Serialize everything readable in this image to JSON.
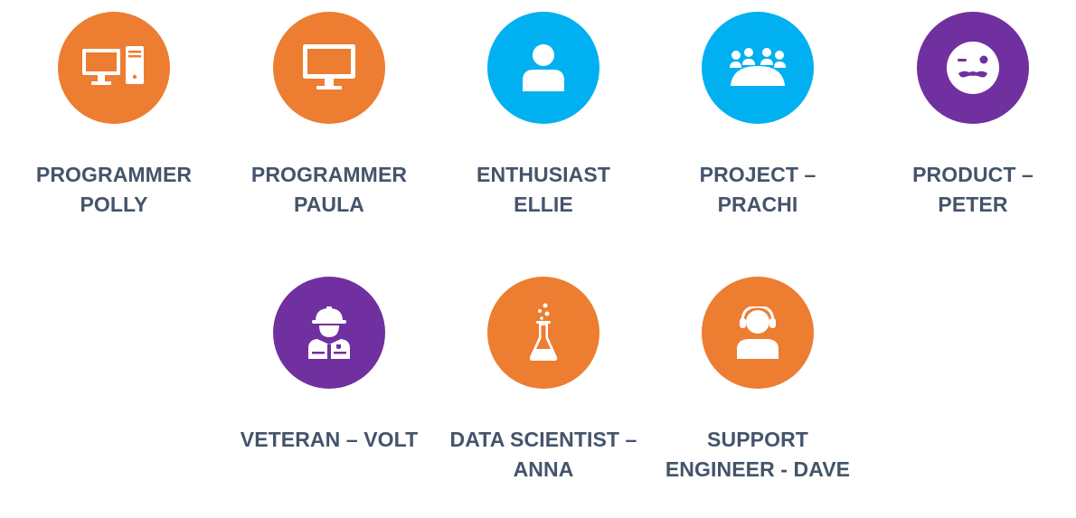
{
  "colors": {
    "orange": "#ed7d31",
    "blue": "#00b0f0",
    "purple": "#7030a0",
    "text": "#44546a"
  },
  "personas": [
    {
      "line1": "PROGRAMMER",
      "line2": "POLLY",
      "icon": "desktop-tower-icon",
      "color": "#ed7d31"
    },
    {
      "line1": "PROGRAMMER",
      "line2": "PAULA",
      "icon": "monitor-icon",
      "color": "#ed7d31"
    },
    {
      "line1": "ENTHUSIAST",
      "line2": "ELLIE",
      "icon": "user-icon",
      "color": "#00b0f0"
    },
    {
      "line1": "PROJECT –",
      "line2": "PRACHI",
      "icon": "meeting-group-icon",
      "color": "#00b0f0"
    },
    {
      "line1": "PRODUCT –",
      "line2": "PETER",
      "icon": "mustache-wink-face-icon",
      "color": "#7030a0"
    },
    {
      "line1": "VETERAN – VOLT",
      "line2": "",
      "icon": "firefighter-icon",
      "color": "#7030a0"
    },
    {
      "line1": "DATA SCIENTIST –",
      "line2": "ANNA",
      "icon": "flask-icon",
      "color": "#ed7d31"
    },
    {
      "line1": "SUPPORT",
      "line2": "ENGINEER - DAVE",
      "icon": "headset-agent-icon",
      "color": "#ed7d31"
    }
  ]
}
